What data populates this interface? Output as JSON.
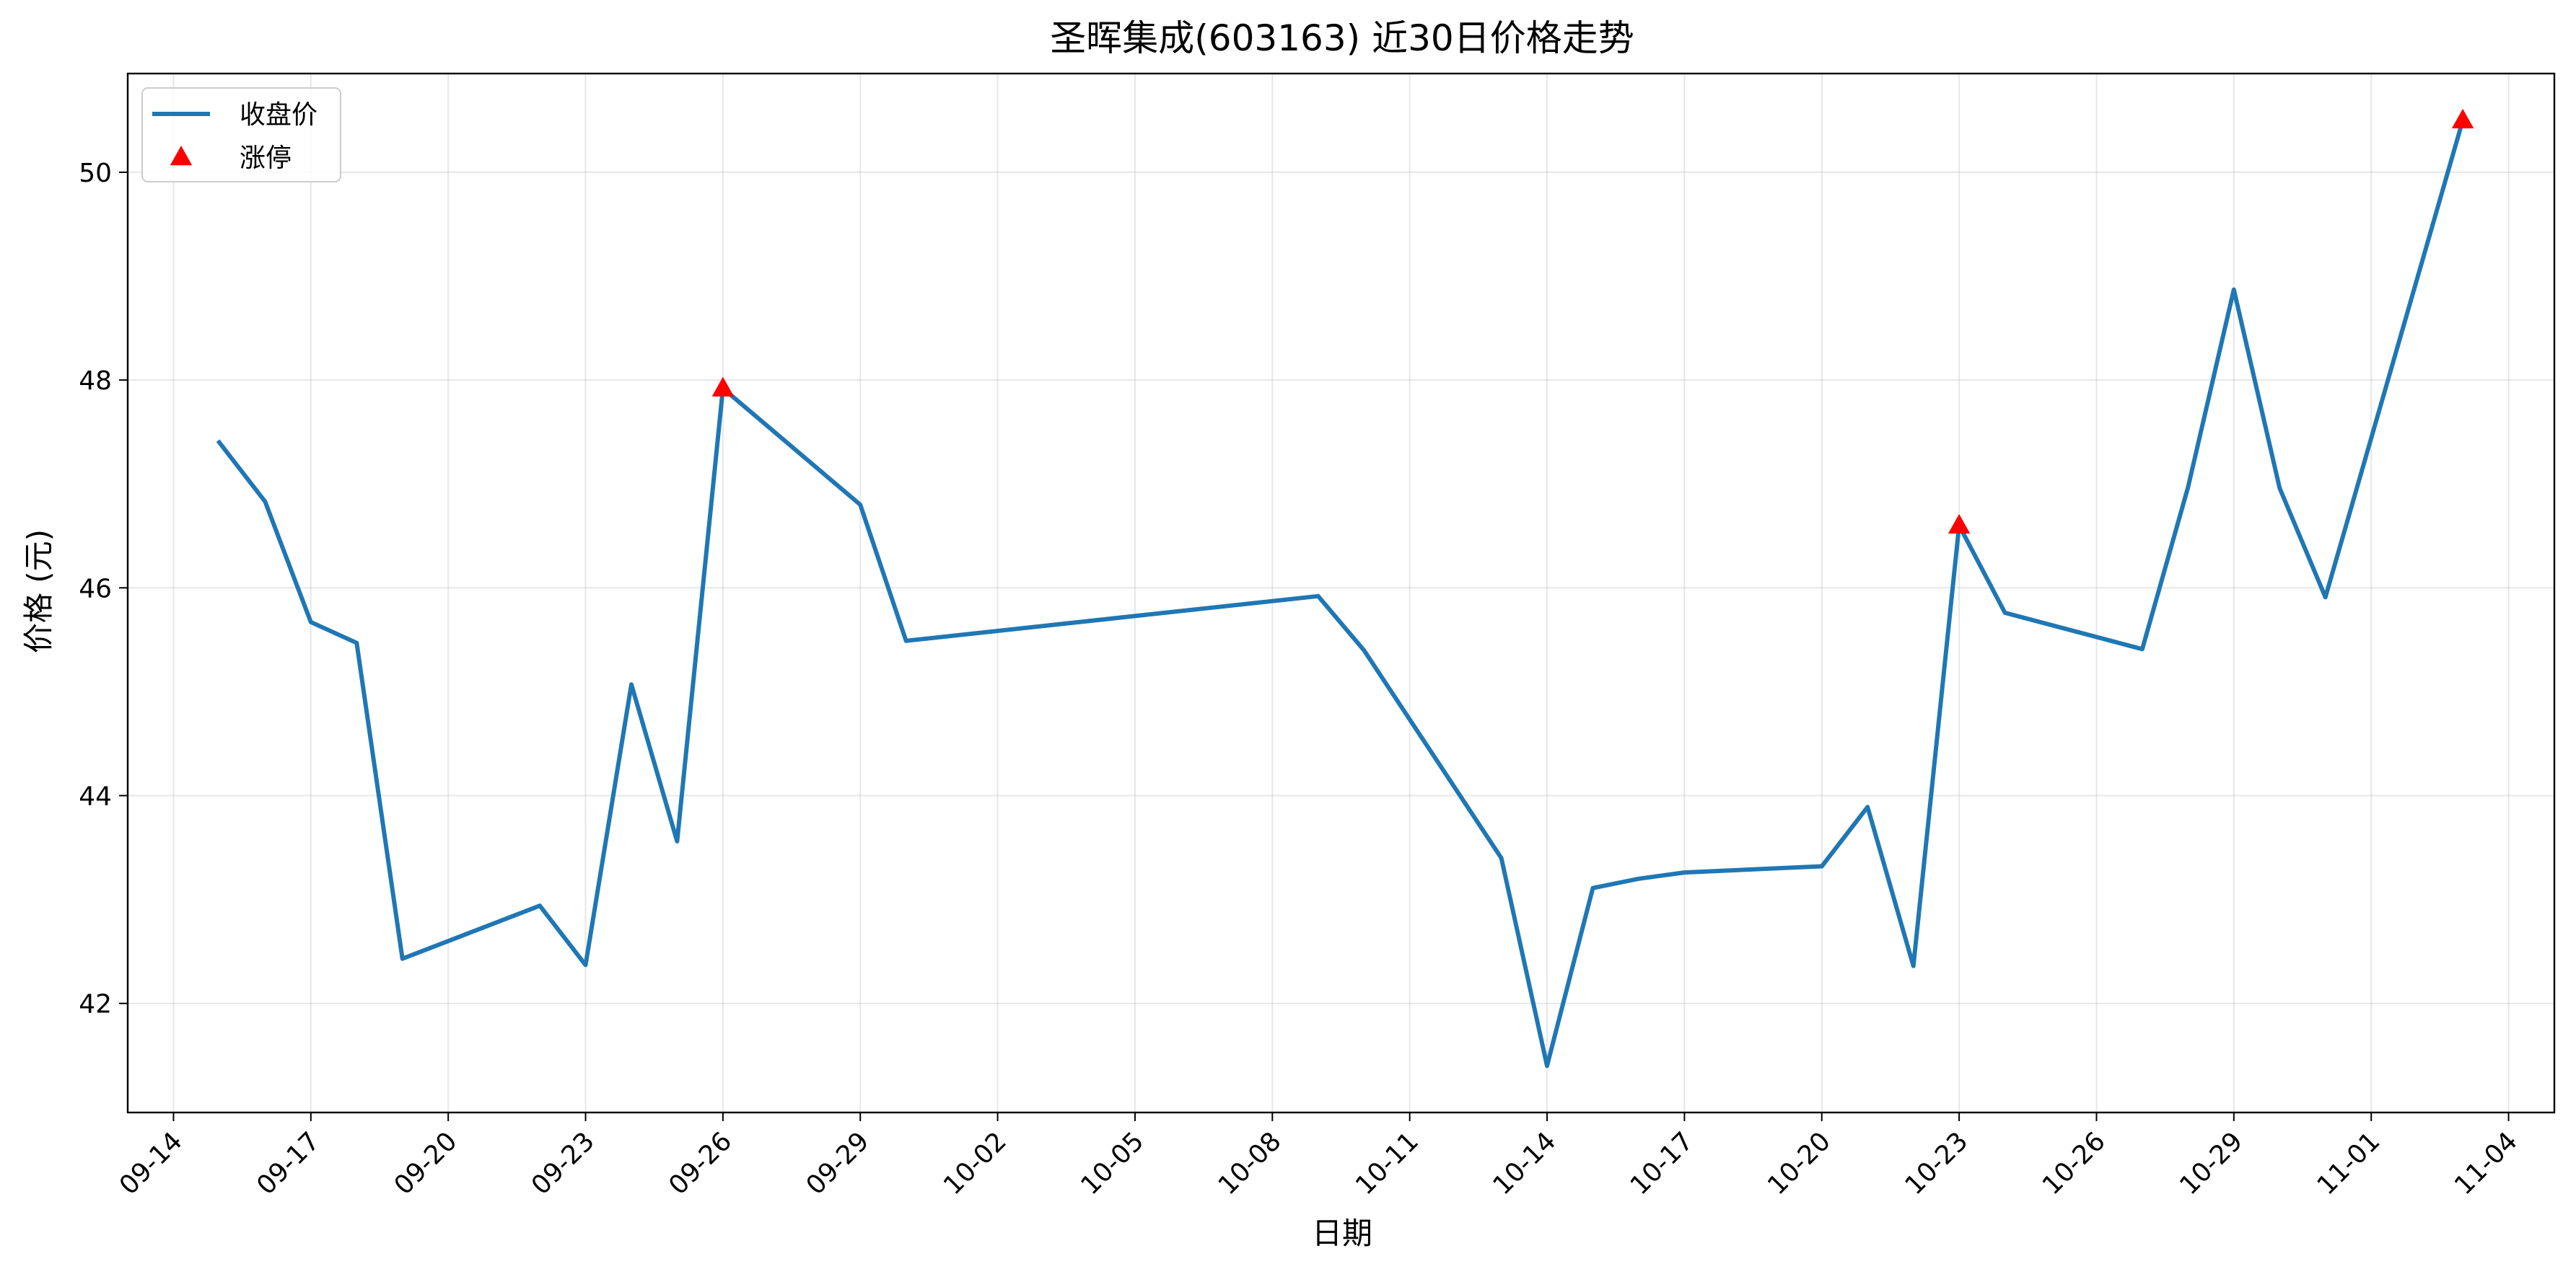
{
  "chart_data": {
    "type": "line",
    "title": "圣晖集成(603163) 近30日价格走势",
    "xlabel": "日期",
    "ylabel": "价格 (元)",
    "ylim": [
      40.95,
      50.95
    ],
    "y_ticks": [
      42,
      44,
      46,
      48,
      50
    ],
    "x_range": [
      "2025-09-13",
      "2025-11-05"
    ],
    "x_ticks": [
      {
        "date": "2025-09-14",
        "label": "09-14"
      },
      {
        "date": "2025-09-17",
        "label": "09-17"
      },
      {
        "date": "2025-09-20",
        "label": "09-20"
      },
      {
        "date": "2025-09-23",
        "label": "09-23"
      },
      {
        "date": "2025-09-26",
        "label": "09-26"
      },
      {
        "date": "2025-09-29",
        "label": "09-29"
      },
      {
        "date": "2025-10-02",
        "label": "10-02"
      },
      {
        "date": "2025-10-05",
        "label": "10-05"
      },
      {
        "date": "2025-10-08",
        "label": "10-08"
      },
      {
        "date": "2025-10-11",
        "label": "10-11"
      },
      {
        "date": "2025-10-14",
        "label": "10-14"
      },
      {
        "date": "2025-10-17",
        "label": "10-17"
      },
      {
        "date": "2025-10-20",
        "label": "10-20"
      },
      {
        "date": "2025-10-23",
        "label": "10-23"
      },
      {
        "date": "2025-10-26",
        "label": "10-26"
      },
      {
        "date": "2025-10-29",
        "label": "10-29"
      },
      {
        "date": "2025-11-01",
        "label": "11-01"
      },
      {
        "date": "2025-11-04",
        "label": "11-04"
      }
    ],
    "grid": true,
    "legend_position": "top-left",
    "series": [
      {
        "name": "收盘价",
        "kind": "line",
        "color": "#1f77b4",
        "points": [
          {
            "x": "2025-09-15",
            "y": 47.4
          },
          {
            "x": "2025-09-16",
            "y": 46.83
          },
          {
            "x": "2025-09-17",
            "y": 45.67
          },
          {
            "x": "2025-09-18",
            "y": 45.47
          },
          {
            "x": "2025-09-19",
            "y": 42.43
          },
          {
            "x": "2025-09-22",
            "y": 42.94
          },
          {
            "x": "2025-09-23",
            "y": 42.37
          },
          {
            "x": "2025-09-24",
            "y": 45.07
          },
          {
            "x": "2025-09-25",
            "y": 43.56
          },
          {
            "x": "2025-09-26",
            "y": 47.92
          },
          {
            "x": "2025-09-29",
            "y": 46.8
          },
          {
            "x": "2025-09-30",
            "y": 45.49
          },
          {
            "x": "2025-10-09",
            "y": 45.92
          },
          {
            "x": "2025-10-10",
            "y": 45.4
          },
          {
            "x": "2025-10-13",
            "y": 43.4
          },
          {
            "x": "2025-10-14",
            "y": 41.4
          },
          {
            "x": "2025-10-15",
            "y": 43.11
          },
          {
            "x": "2025-10-16",
            "y": 43.2
          },
          {
            "x": "2025-10-17",
            "y": 43.26
          },
          {
            "x": "2025-10-20",
            "y": 43.32
          },
          {
            "x": "2025-10-21",
            "y": 43.89
          },
          {
            "x": "2025-10-22",
            "y": 42.36
          },
          {
            "x": "2025-10-23",
            "y": 46.6
          },
          {
            "x": "2025-10-24",
            "y": 45.76
          },
          {
            "x": "2025-10-27",
            "y": 45.41
          },
          {
            "x": "2025-10-28",
            "y": 46.97
          },
          {
            "x": "2025-10-29",
            "y": 48.87
          },
          {
            "x": "2025-10-30",
            "y": 46.96
          },
          {
            "x": "2025-10-31",
            "y": 45.91
          },
          {
            "x": "2025-11-03",
            "y": 50.5
          }
        ]
      },
      {
        "name": "涨停",
        "kind": "marker",
        "marker": "triangle-up",
        "color": "#ff0000",
        "points": [
          {
            "x": "2025-09-26",
            "y": 47.92
          },
          {
            "x": "2025-10-23",
            "y": 46.6
          },
          {
            "x": "2025-11-03",
            "y": 50.5
          }
        ]
      }
    ]
  }
}
